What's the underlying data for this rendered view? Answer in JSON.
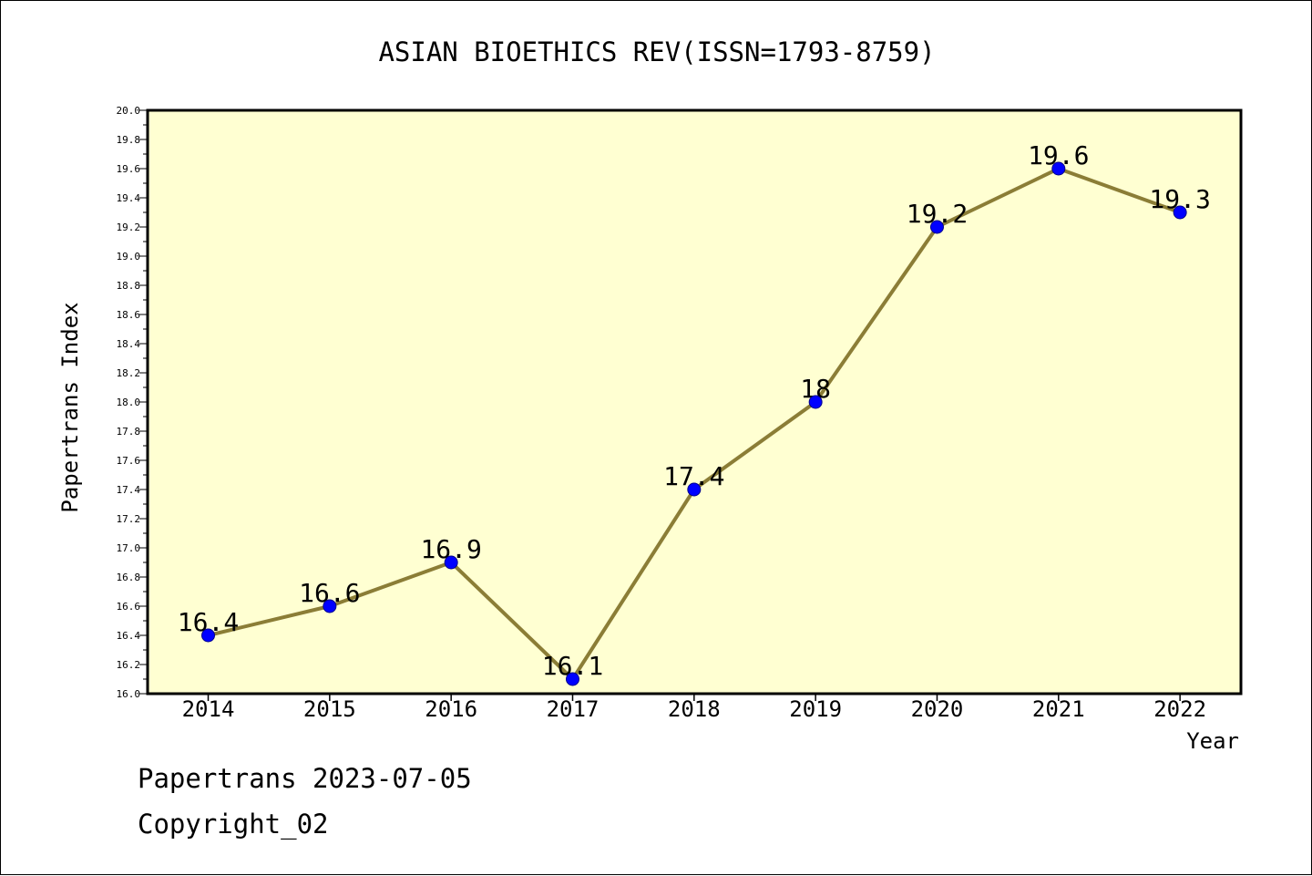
{
  "chart_data": {
    "type": "line",
    "title": "ASIAN BIOETHICS REV(ISSN=1793-8759)",
    "xlabel": "Year",
    "ylabel": "Papertrans Index",
    "categories": [
      "2014",
      "2015",
      "2016",
      "2017",
      "2018",
      "2019",
      "2020",
      "2021",
      "2022"
    ],
    "series": [
      {
        "values": [
          16.4,
          16.6,
          16.9,
          16.1,
          17.4,
          18.0,
          19.2,
          19.6,
          19.3
        ],
        "point_labels": [
          "16.4",
          "16.6",
          "16.9",
          "16.1",
          "17.4",
          "18",
          "19.2",
          "19.6",
          "19.3"
        ]
      }
    ],
    "ylim": [
      16.0,
      20.0
    ],
    "yticks": [
      "16.0",
      "16.2",
      "16.4",
      "16.6",
      "16.8",
      "17.0",
      "17.2",
      "17.4",
      "17.6",
      "17.8",
      "18.0",
      "18.2",
      "18.4",
      "18.6",
      "18.8",
      "19.0",
      "19.2",
      "19.4",
      "19.6",
      "19.8",
      "20.0"
    ],
    "grid": false,
    "legend": "none",
    "colors": {
      "plot_background": "#ffffd2",
      "line": "#8b7d36",
      "marker": "#0000ff",
      "marker_edge": "#00008b"
    }
  },
  "footer": {
    "date_line": "Papertrans 2023-07-05",
    "copyright_line": "Copyright_02"
  }
}
